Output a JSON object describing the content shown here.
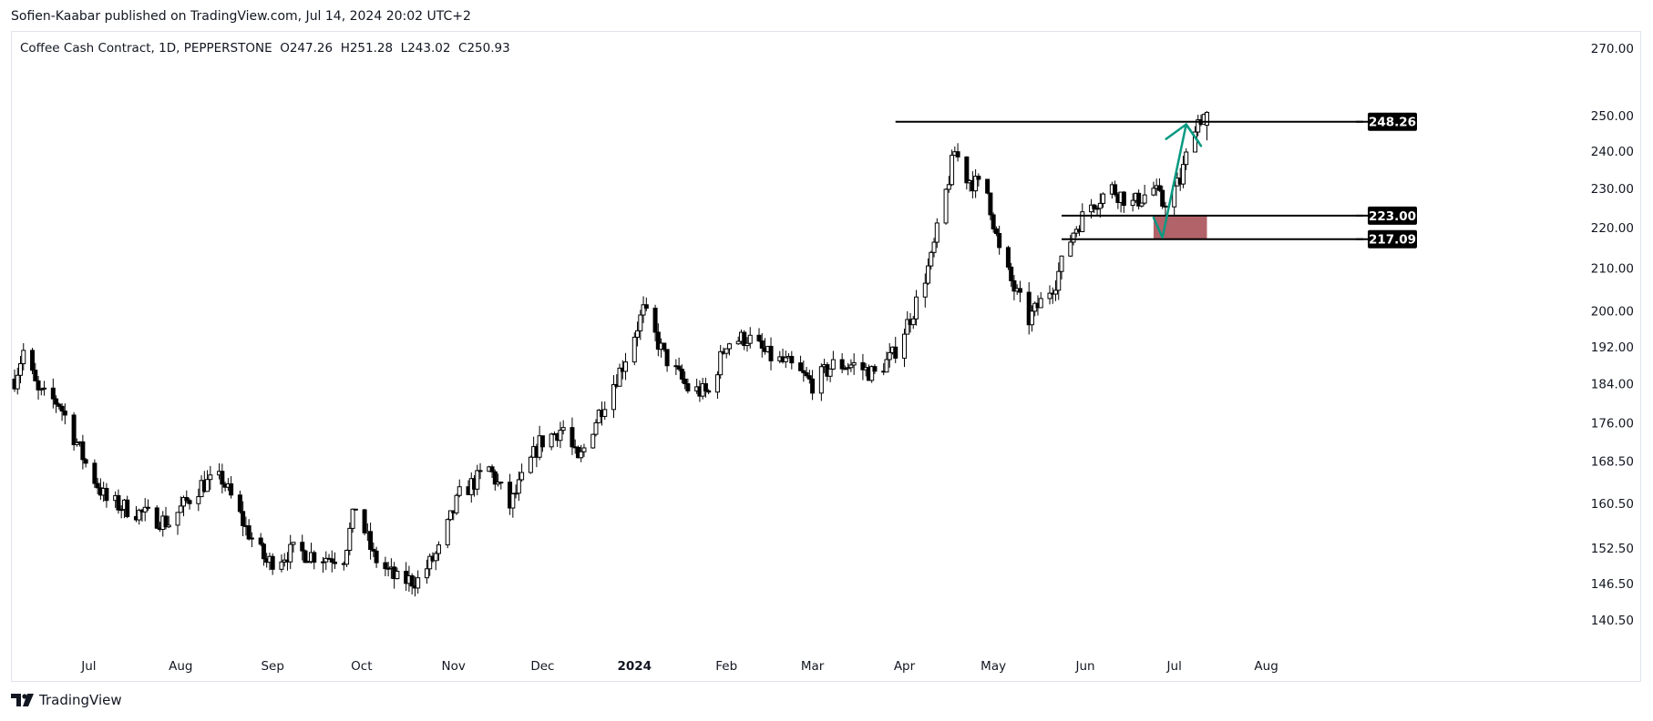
{
  "header": {
    "published_by": "Sofien-Kaabar published on TradingView.com, Jul 14, 2024 20:02 UTC+2"
  },
  "legend": {
    "symbol": "Coffee Cash Contract, 1D, PEPPERSTONE",
    "open": "O247.26",
    "high": "H251.28",
    "low": "L243.02",
    "close": "C250.93"
  },
  "footer": {
    "brand": "TradingView",
    "logo_icon": "tradingview-logo-icon"
  },
  "colors": {
    "up_body": "#ffffff",
    "candle_outline": "#000000",
    "down_body": "#000000",
    "arrow": "#089981",
    "zone": "#a4484f",
    "grid_border": "#e0e3eb"
  },
  "chart_data": {
    "type": "candlestick",
    "scale": "log",
    "ylim": [
      135,
      275
    ],
    "y_ticks": [
      "270.00",
      "250.00",
      "240.00",
      "230.00",
      "220.00",
      "210.00",
      "200.00",
      "192.00",
      "184.00",
      "176.00",
      "168.50",
      "160.50",
      "152.50",
      "146.50",
      "140.50"
    ],
    "x_ticks": [
      {
        "label": "Jul",
        "date": "2023-07-01"
      },
      {
        "label": "Aug",
        "date": "2023-08-01"
      },
      {
        "label": "Sep",
        "date": "2023-09-01"
      },
      {
        "label": "Oct",
        "date": "2023-10-01"
      },
      {
        "label": "Nov",
        "date": "2023-11-01"
      },
      {
        "label": "Dec",
        "date": "2023-12-01"
      },
      {
        "label": "2024",
        "date": "2024-01-01",
        "bold": true
      },
      {
        "label": "Feb",
        "date": "2024-02-01"
      },
      {
        "label": "Mar",
        "date": "2024-03-01"
      },
      {
        "label": "Apr",
        "date": "2024-04-01"
      },
      {
        "label": "May",
        "date": "2024-05-01"
      },
      {
        "label": "Jun",
        "date": "2024-06-01"
      },
      {
        "label": "Jul",
        "date": "2024-07-01"
      },
      {
        "label": "Aug",
        "date": "2024-08-01"
      }
    ],
    "x_range": [
      "2023-06-06",
      "2024-08-30"
    ],
    "price_labels": [
      {
        "value": 248.26,
        "text": "248.26"
      },
      {
        "value": 223.0,
        "text": "223.00"
      },
      {
        "value": 217.09,
        "text": "217.09"
      }
    ],
    "horizontal_lines": [
      {
        "value": 248.26,
        "from": "2024-03-29"
      },
      {
        "value": 223.0,
        "from": "2024-05-24"
      },
      {
        "value": 217.09,
        "from": "2024-05-24"
      }
    ],
    "zone": {
      "from": "2024-06-24",
      "to": "2024-07-12",
      "top": 223.0,
      "bottom": 217.09
    },
    "arrow": {
      "points": [
        [
          "2024-06-24",
          222.5
        ],
        [
          "2024-06-27",
          217.5
        ],
        [
          "2024-07-05",
          247.5
        ],
        [
          "2024-07-10",
          241.5
        ]
      ]
    },
    "anchors": [
      [
        "2023-06-06",
        185
      ],
      [
        "2023-06-09",
        191
      ],
      [
        "2023-06-14",
        182
      ],
      [
        "2023-06-21",
        180
      ],
      [
        "2023-06-30",
        168
      ],
      [
        "2023-07-07",
        161
      ],
      [
        "2023-07-17",
        159
      ],
      [
        "2023-07-28",
        157
      ],
      [
        "2023-08-08",
        164
      ],
      [
        "2023-08-15",
        165
      ],
      [
        "2023-08-23",
        156
      ],
      [
        "2023-08-30",
        150
      ],
      [
        "2023-09-08",
        152
      ],
      [
        "2023-09-18",
        151
      ],
      [
        "2023-09-25",
        151
      ],
      [
        "2023-09-29",
        160
      ],
      [
        "2023-10-05",
        151
      ],
      [
        "2023-10-13",
        147
      ],
      [
        "2023-10-20",
        147
      ],
      [
        "2023-10-27",
        152
      ],
      [
        "2023-11-03",
        162
      ],
      [
        "2023-11-13",
        167
      ],
      [
        "2023-11-20",
        160
      ],
      [
        "2023-11-30",
        172
      ],
      [
        "2023-12-08",
        175
      ],
      [
        "2023-12-13",
        168
      ],
      [
        "2023-12-20",
        178
      ],
      [
        "2023-12-28",
        188
      ],
      [
        "2024-01-04",
        200
      ],
      [
        "2024-01-11",
        190
      ],
      [
        "2024-01-19",
        183
      ],
      [
        "2024-01-26",
        182
      ],
      [
        "2024-02-01",
        193
      ],
      [
        "2024-02-08",
        194
      ],
      [
        "2024-02-15",
        190
      ],
      [
        "2024-02-22",
        188
      ],
      [
        "2024-03-01",
        184
      ],
      [
        "2024-03-08",
        188
      ],
      [
        "2024-03-15",
        188
      ],
      [
        "2024-03-22",
        186
      ],
      [
        "2024-03-28",
        190
      ],
      [
        "2024-04-04",
        200
      ],
      [
        "2024-04-10",
        212
      ],
      [
        "2024-04-15",
        229
      ],
      [
        "2024-04-18",
        240
      ],
      [
        "2024-04-22",
        233
      ],
      [
        "2024-04-29",
        229
      ],
      [
        "2024-05-03",
        214
      ],
      [
        "2024-05-08",
        205
      ],
      [
        "2024-05-13",
        198
      ],
      [
        "2024-05-17",
        202
      ],
      [
        "2024-05-22",
        207
      ],
      [
        "2024-05-28",
        219
      ],
      [
        "2024-06-03",
        226
      ],
      [
        "2024-06-10",
        230
      ],
      [
        "2024-06-17",
        226
      ],
      [
        "2024-06-24",
        230
      ],
      [
        "2024-06-27",
        226
      ],
      [
        "2024-07-03",
        232
      ],
      [
        "2024-07-08",
        248
      ],
      [
        "2024-07-12",
        250.9
      ]
    ]
  }
}
